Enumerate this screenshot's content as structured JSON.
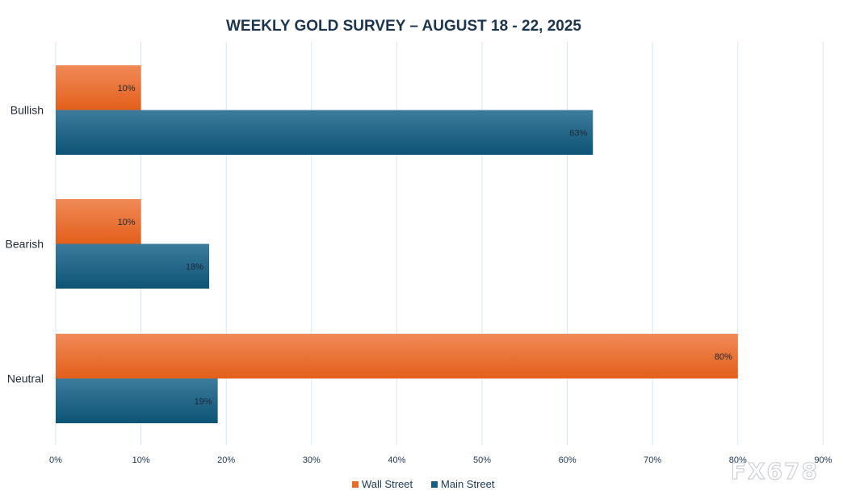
{
  "chart_data": {
    "type": "bar",
    "orientation": "horizontal",
    "title": "WEEKLY GOLD SURVEY – AUGUST 18  - 22, 2025",
    "categories": [
      "Bullish",
      "Bearish",
      "Neutral"
    ],
    "series": [
      {
        "name": "Wall Street",
        "values": [
          10,
          10,
          80
        ],
        "labels": [
          "10%",
          "10%",
          "80%"
        ],
        "color": "#e8692a"
      },
      {
        "name": "Main Street",
        "values": [
          63,
          18,
          19
        ],
        "labels": [
          "63%",
          "18%",
          "19%"
        ],
        "color": "#175d80"
      }
    ],
    "xlim": [
      0,
      90
    ],
    "xticks": [
      "0%",
      "10%",
      "20%",
      "30%",
      "40%",
      "50%",
      "60%",
      "70%",
      "80%",
      "90%"
    ],
    "grid": true,
    "legend_position": "bottom"
  },
  "watermark": "FX678",
  "colors": {
    "gridline": "#d6e6f3",
    "title": "#1b3550"
  }
}
